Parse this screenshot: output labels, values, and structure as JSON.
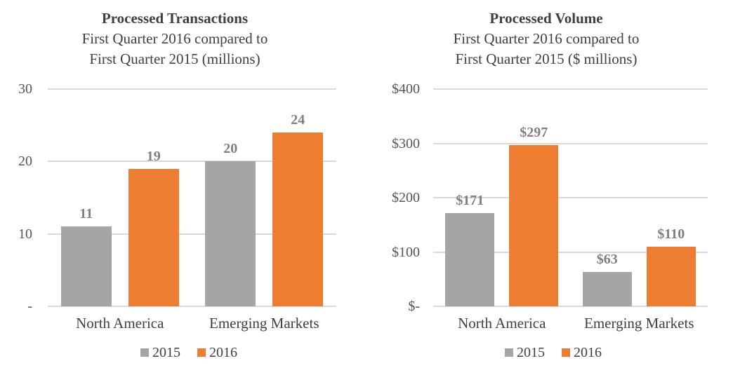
{
  "colors": {
    "series_2015": "#A5A5A5",
    "series_2016": "#ED7D31",
    "gridline": "#D9D9D9",
    "title_text": "#3F3F3F",
    "tick_text": "#555555",
    "value_label_text": "#7F7F7F"
  },
  "chart_data": [
    {
      "type": "bar",
      "title": "Processed Transactions",
      "subtitle_lines": [
        "First Quarter 2016 compared to",
        "First Quarter 2015 (millions)"
      ],
      "categories": [
        "North America",
        "Emerging Markets"
      ],
      "series": [
        {
          "name": "2015",
          "color": "#A5A5A5",
          "values": [
            11,
            20
          ],
          "labels": [
            "11",
            "20"
          ]
        },
        {
          "name": "2016",
          "color": "#ED7D31",
          "values": [
            19,
            24
          ],
          "labels": [
            "19",
            "24"
          ]
        }
      ],
      "ylim": [
        0,
        30
      ],
      "yticks": [
        {
          "value": 30,
          "label": "30"
        },
        {
          "value": 20,
          "label": "20"
        },
        {
          "value": 10,
          "label": "10"
        },
        {
          "value": 0,
          "label": "-"
        }
      ],
      "grid": true,
      "legend": {
        "position": "bottom",
        "entries": [
          "2015",
          "2016"
        ]
      }
    },
    {
      "type": "bar",
      "title": "Processed Volume",
      "subtitle_lines": [
        "First Quarter 2016 compared to",
        "First Quarter 2015 ($ millions)"
      ],
      "categories": [
        "North America",
        "Emerging Markets"
      ],
      "series": [
        {
          "name": "2015",
          "color": "#A5A5A5",
          "values": [
            171,
            63
          ],
          "labels": [
            "$171",
            "$63"
          ]
        },
        {
          "name": "2016",
          "color": "#ED7D31",
          "values": [
            297,
            110
          ],
          "labels": [
            "$297",
            "$110"
          ]
        }
      ],
      "ylim": [
        0,
        400
      ],
      "yticks": [
        {
          "value": 400,
          "label": "$400"
        },
        {
          "value": 300,
          "label": "$300"
        },
        {
          "value": 200,
          "label": "$200"
        },
        {
          "value": 100,
          "label": "$100"
        },
        {
          "value": 0,
          "label": "$-"
        }
      ],
      "grid": true,
      "legend": {
        "position": "bottom",
        "entries": [
          "2015",
          "2016"
        ]
      }
    }
  ]
}
